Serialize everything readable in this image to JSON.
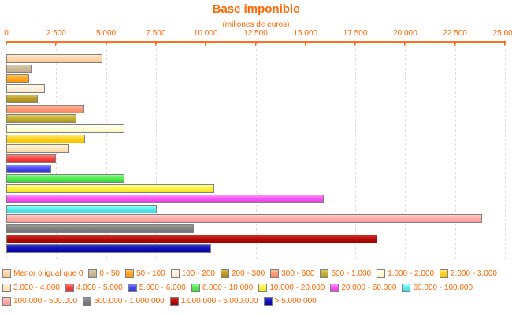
{
  "page": {
    "title": "Base imponible"
  },
  "colors": {
    "background": "#FFFFFF",
    "text": "#FF6600",
    "axis_line": "#FF701E",
    "grid": "#DCDCDC",
    "bar_border": "#808080"
  },
  "chart_data": {
    "type": "bar",
    "orientation": "horizontal",
    "title": "Base imponible",
    "subtitle": "(millones de euros)",
    "xlabel": "",
    "ylabel": "",
    "unit": "millones de euros",
    "xlim": [
      0,
      25000
    ],
    "x_ticks": [
      0,
      2500,
      5000,
      7500,
      10000,
      12500,
      15000,
      17500,
      20000,
      22500,
      25000
    ],
    "x_tick_labels": [
      "0",
      "2.500",
      "5.000",
      "7.500",
      "10.000",
      "12.500",
      "15.000",
      "17.500",
      "20.000",
      "22.500",
      "25.000"
    ],
    "grid": "vertical-dashed",
    "legend_position": "bottom",
    "legend_row_counts": [
      9,
      7,
      4
    ],
    "items": [
      {
        "label": "Menor o igual que 0",
        "value": 4800,
        "color": "#FFD7AE",
        "color_light": "#FFE7CC",
        "color_dark": "#FFC690"
      },
      {
        "label": "0 - 50",
        "value": 1270,
        "color": "#CBB999",
        "color_light": "#D9CBAF",
        "color_dark": "#BDA887"
      },
      {
        "label": "50 - 100",
        "value": 1150,
        "color": "#FFA928",
        "color_light": "#FFC869",
        "color_dark": "#FF9708"
      },
      {
        "label": "100 - 200",
        "value": 1930,
        "color": "#FFF1DC",
        "color_light": "#FFF8EC",
        "color_dark": "#F7E6C8"
      },
      {
        "label": "200 - 300",
        "value": 1580,
        "color": "#BC9E2B",
        "color_light": "#D5BC52",
        "color_dark": "#A8891A"
      },
      {
        "label": "300 - 600",
        "value": 3910,
        "color": "#FF9B78",
        "color_light": "#FFBCA3",
        "color_dark": "#F88763"
      },
      {
        "label": "600 - 1.000",
        "value": 3520,
        "color": "#C7B138",
        "color_light": "#DBCB60",
        "color_dark": "#B19B22"
      },
      {
        "label": "1.000 - 2.000",
        "value": 5920,
        "color": "#FFFFDB",
        "color_light": "#FFFFF2",
        "color_dark": "#F8F4C0"
      },
      {
        "label": "2.000 - 3.000",
        "value": 3940,
        "color": "#FFD41E",
        "color_light": "#FFE87A",
        "color_dark": "#F4C303"
      },
      {
        "label": "3.000 - 4.000",
        "value": 3120,
        "color": "#FFE8C2",
        "color_light": "#FFF2DC",
        "color_dark": "#F8D9A6"
      },
      {
        "label": "4.000 - 5.000",
        "value": 2490,
        "color": "#F64545",
        "color_light": "#FF7F72",
        "color_dark": "#E32C2C"
      },
      {
        "label": "5.000 - 6.000",
        "value": 2250,
        "color": "#4A47EE",
        "color_light": "#8587FF",
        "color_dark": "#3532D2"
      },
      {
        "label": "6.000 - 10.000",
        "value": 5920,
        "color": "#57EE57",
        "color_light": "#93FF93",
        "color_dark": "#3FD53F"
      },
      {
        "label": "10.000 - 20.000",
        "value": 10430,
        "color": "#FFF542",
        "color_light": "#FFFB9E",
        "color_dark": "#F0E41E"
      },
      {
        "label": "20.000 - 60.000",
        "value": 15920,
        "color": "#F956F2",
        "color_light": "#FF90FB",
        "color_dark": "#E93BE2"
      },
      {
        "label": "60.000 - 100.000",
        "value": 7540,
        "color": "#5CEFEF",
        "color_light": "#A5FFFF",
        "color_dark": "#3FDADA"
      },
      {
        "label": "100.000 - 500.000",
        "value": 23850,
        "color": "#FFAFAC",
        "color_light": "#FFCDCA",
        "color_dark": "#F99A96"
      },
      {
        "label": "500.000 - 1.000.000",
        "value": 9390,
        "color": "#838383",
        "color_light": "#9A9A9A",
        "color_dark": "#707070"
      },
      {
        "label": "1.000.000 - 5.000.000",
        "value": 18600,
        "color": "#B90C08",
        "color_light": "#D03028",
        "color_dark": "#9E0300"
      },
      {
        "label": "> 5.000.000",
        "value": 10270,
        "color": "#1212BC",
        "color_light": "#423EDA",
        "color_dark": "#0606A4"
      }
    ]
  }
}
